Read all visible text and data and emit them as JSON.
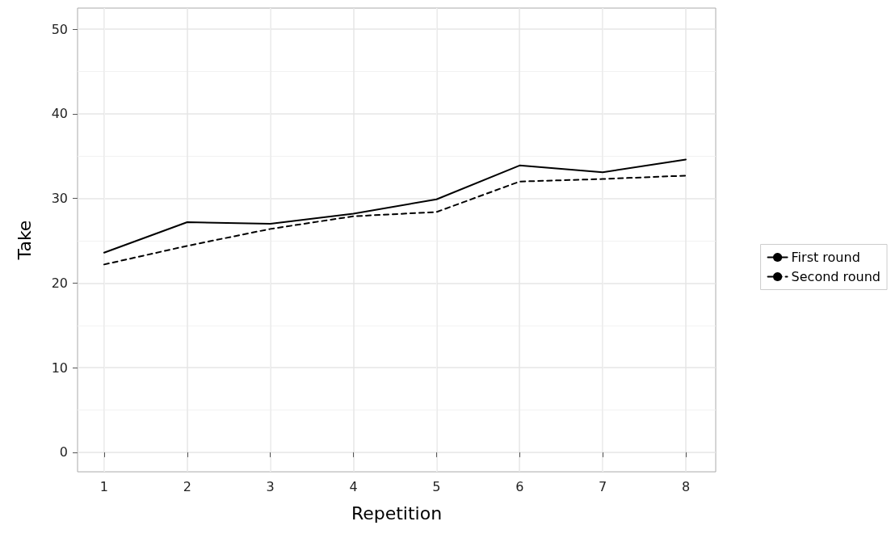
{
  "chart_data": {
    "type": "line",
    "xlabel": "Repetition",
    "ylabel": "Take",
    "x": [
      1,
      2,
      3,
      4,
      5,
      6,
      7,
      8
    ],
    "series": [
      {
        "name": "First round",
        "color": "#000000",
        "line_style": "solid",
        "values": [
          23.6,
          27.2,
          27.0,
          28.2,
          29.9,
          33.9,
          33.1,
          34.6
        ]
      },
      {
        "name": "Second round",
        "color": "#000000",
        "line_style": "dashed",
        "values": [
          22.2,
          24.4,
          26.4,
          27.9,
          28.4,
          32.0,
          32.3,
          32.7
        ]
      }
    ],
    "xlim": [
      0.68,
      8.36
    ],
    "xticks": [
      1,
      2,
      3,
      4,
      5,
      6,
      7,
      8
    ],
    "ylim": [
      -2.3,
      52.5
    ],
    "yticks": [
      0,
      10,
      20,
      30,
      40,
      50
    ],
    "grid": true,
    "legend": "right",
    "marker": "none"
  }
}
